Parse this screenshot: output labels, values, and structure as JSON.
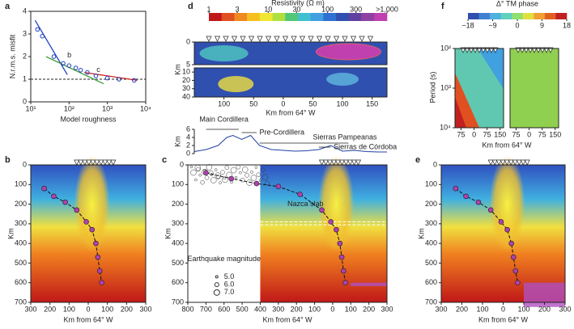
{
  "chart_data": [
    {
      "type": "misfit",
      "label": "a",
      "xlabel": "Model roughness",
      "ylabel": "N.r.m.s. misfit",
      "xlog": true,
      "xlim": [
        10,
        10000
      ],
      "xticks": [
        {
          "value": 10,
          "label": "10¹"
        },
        {
          "value": 100,
          "label": "10²"
        },
        {
          "value": 1000,
          "label": "10³"
        },
        {
          "value": 10000,
          "label": "10⁴"
        }
      ],
      "ylim": [
        0,
        4
      ],
      "yticks": [
        0,
        1,
        2,
        3,
        4
      ],
      "reference": 1,
      "annotations": [
        "b",
        "c"
      ],
      "series": [
        {
          "color": "#1f3fbf",
          "x": [
            15,
            20,
            40,
            70,
            100,
            150,
            200,
            300,
            500,
            1000,
            2000,
            5000
          ],
          "values": [
            3.2,
            2.9,
            2.0,
            1.7,
            1.6,
            1.5,
            1.4,
            1.3,
            1.15,
            1.05,
            1.0,
            0.95
          ]
        }
      ]
    },
    {
      "type": "section",
      "label": "b",
      "xlabel": "Km from 64° W",
      "ylabel": "Km",
      "xlim": [
        -300,
        300
      ],
      "xticks": [
        {
          "value": -300,
          "label": "300"
        },
        {
          "value": -200,
          "label": "200"
        },
        {
          "value": -100,
          "label": "100"
        },
        0,
        100,
        200,
        300
      ],
      "ylim": [
        700,
        0
      ],
      "yticks": [
        0,
        100,
        200,
        300,
        400,
        500,
        600,
        700
      ],
      "slab": {
        "x": [
          -230,
          -180,
          -120,
          -60,
          -10,
          20,
          40,
          50,
          60,
          70
        ],
        "values": [
          120,
          160,
          190,
          230,
          290,
          330,
          400,
          470,
          540,
          600
        ]
      }
    },
    {
      "type": "section",
      "label": "c",
      "xlabel": "Km from 64° W",
      "ylabel": "Km",
      "xlim": [
        -800,
        300
      ],
      "xticks": [
        {
          "value": -800,
          "label": "800"
        },
        {
          "value": -700,
          "label": "700"
        },
        {
          "value": -600,
          "label": "600"
        },
        {
          "value": -500,
          "label": "500"
        },
        {
          "value": -400,
          "label": "400"
        },
        {
          "value": -300,
          "label": "300"
        },
        {
          "value": -200,
          "label": "200"
        },
        {
          "value": -100,
          "label": "100"
        },
        0,
        100,
        200,
        300
      ],
      "ylim": [
        700,
        0
      ],
      "yticks": [
        0,
        100,
        200,
        300,
        400,
        500,
        600,
        700
      ],
      "annotation": "Nazca slab",
      "legend_title": "Earthquake magnitude",
      "magnitudes": [
        "5.0",
        "6.0",
        "7.0"
      ],
      "slab": {
        "x": [
          -700,
          -560,
          -420,
          -300,
          -180,
          -60,
          -10,
          20,
          40,
          50,
          60,
          70
        ],
        "values": [
          40,
          70,
          95,
          110,
          150,
          230,
          290,
          330,
          400,
          470,
          540,
          600
        ]
      }
    },
    {
      "type": "resistivity",
      "label": "d",
      "colorbar_title": "Resistivity (Ω m)",
      "colorbar_lim": [
        1,
        1000
      ],
      "colorbar_ticks": [
        1,
        3,
        10,
        30,
        100,
        300,
        {
          "value": 1000,
          "label": ">1,000"
        }
      ],
      "colors": [
        "#c01818",
        "#e05020",
        "#f08a20",
        "#f5c020",
        "#f0e830",
        "#b0e040",
        "#50c878",
        "#40c0d0",
        "#40a0e0",
        "#3070d0",
        "#3050b0",
        "#6040a0",
        "#9040a0",
        "#c040b0"
      ],
      "xlabel": "Km from 64° W",
      "ylabel": "Km",
      "xlim": [
        -150,
        175
      ],
      "xticks": [
        {
          "value": -100,
          "label": "100"
        },
        {
          "value": -50,
          "label": "50"
        },
        0,
        50,
        100,
        150
      ],
      "ylim_upper": [
        0,
        5
      ],
      "yticks_upper": [
        0,
        5
      ],
      "ylim_lower": [
        5,
        40
      ],
      "yticks_lower": [
        10,
        20,
        30,
        40
      ],
      "topography": {
        "ylabel": "Km",
        "ylim": [
          0,
          6
        ],
        "yticks": [
          0,
          2,
          4,
          6
        ],
        "x": [
          -150,
          -130,
          -110,
          -95,
          -85,
          -70,
          -55,
          -40,
          -20,
          0,
          20,
          40,
          60,
          70,
          80,
          100,
          120,
          140,
          160,
          175
        ],
        "values": [
          0.5,
          1,
          2,
          4,
          4.5,
          3.5,
          4.5,
          2,
          1,
          0.8,
          0.6,
          0.7,
          1,
          1.5,
          2,
          0.6,
          0.8,
          0.5,
          0.4,
          0.4
        ],
        "annotations": [
          "Main Cordillera",
          "Pre-Cordillera",
          "Sierras Pampeanas",
          "Sierras de Córdoba"
        ]
      }
    },
    {
      "type": "section",
      "label": "e",
      "xlabel": "Km from 64° W",
      "ylabel": "Km",
      "xlim": [
        -300,
        300
      ],
      "xticks": [
        {
          "value": -300,
          "label": "300"
        },
        {
          "value": -200,
          "label": "200"
        },
        {
          "value": -100,
          "label": "100"
        },
        0,
        100,
        200,
        300
      ],
      "ylim": [
        700,
        0
      ],
      "yticks": [
        0,
        100,
        200,
        300,
        400,
        500,
        600,
        700
      ],
      "slab": {
        "x": [
          -230,
          -180,
          -120,
          -60,
          -10,
          20,
          40,
          50,
          60,
          70
        ],
        "values": [
          120,
          160,
          190,
          230,
          290,
          330,
          400,
          470,
          540,
          600
        ]
      }
    },
    {
      "type": "phase",
      "label": "f",
      "colorbar_title": "Δ° TM phase",
      "colorbar_lim": [
        -18,
        18
      ],
      "colorbar_ticks": [
        {
          "value": -18,
          "label": "−18"
        },
        {
          "value": -9,
          "label": "−9"
        },
        0,
        9,
        18
      ],
      "colors": [
        "#3050b0",
        "#4080d0",
        "#50b0e0",
        "#60d0c0",
        "#90e070",
        "#e0e040",
        "#f0a030",
        "#e06020",
        "#c02020"
      ],
      "ylabel": "Period (s)",
      "ylog": true,
      "ylim": [
        100,
        10000
      ],
      "yticks": [
        {
          "value": 100,
          "label": "10²"
        },
        {
          "value": 1000,
          "label": "10³"
        },
        {
          "value": 10000,
          "label": "10⁴"
        }
      ],
      "xlim": [
        -110,
        170
      ],
      "xticks": [
        {
          "value": -75,
          "label": "75"
        },
        0,
        75,
        150
      ],
      "xlabel": "Km from 64° W"
    }
  ]
}
